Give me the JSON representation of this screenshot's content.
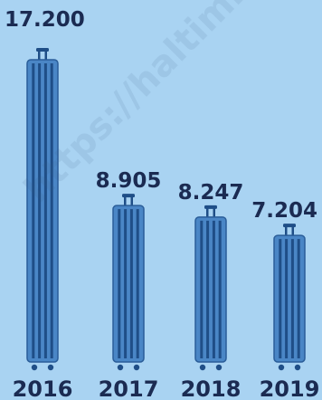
{
  "chart_data": {
    "type": "bar",
    "title": "",
    "xlabel": "",
    "ylabel": "",
    "categories": [
      "2016",
      "2017",
      "2018",
      "2019"
    ],
    "values": [
      17.2,
      8.905,
      8.247,
      7.204
    ],
    "value_labels": [
      "17.200",
      "8.905",
      "8.247",
      "7.204"
    ],
    "ylim": [
      0,
      17.2
    ],
    "grid": false,
    "mark_style": "suitcase",
    "colors": {
      "background": "#a9d3f2",
      "bar_fill": "#4a86c6",
      "bar_stripe": "#1f4e87",
      "bar_outline": "#2a5d99",
      "text": "#1b2b52"
    }
  },
  "watermark": "https://haltimi"
}
